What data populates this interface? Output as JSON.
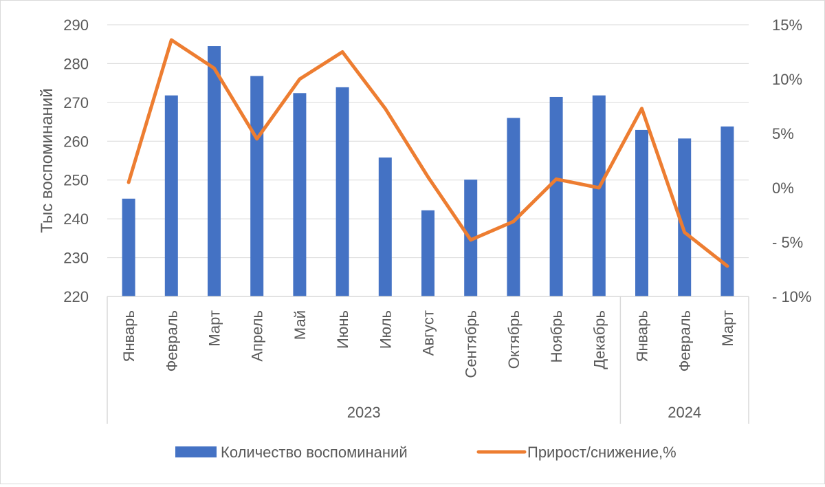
{
  "chart_data": {
    "type": "bar",
    "categories": [
      "Январь",
      "Февраль",
      "Март",
      "Апрель",
      "Май",
      "Июнь",
      "Июль",
      "Август",
      "Сентябрь",
      "Октябрь",
      "Ноябрь",
      "Декабрь",
      "Январь",
      "Февраль",
      "Март"
    ],
    "groups": [
      {
        "label": "2023",
        "count": 12
      },
      {
        "label": "2024",
        "count": 3
      }
    ],
    "series": [
      {
        "name": "Количество воспоминаний",
        "type": "bar",
        "axis": "left",
        "color": "#4472C4",
        "values": [
          245.2,
          271.8,
          284.5,
          276.8,
          272.4,
          273.9,
          255.8,
          242.2,
          250.1,
          266.0,
          271.4,
          271.8,
          262.9,
          260.7,
          263.8
        ]
      },
      {
        "name": "Прирост/снижение,%",
        "type": "line",
        "axis": "right",
        "color": "#ED7D31",
        "values": [
          0.5,
          13.6,
          11.0,
          4.5,
          10.0,
          12.5,
          7.3,
          1.0,
          -4.8,
          -3.1,
          0.8,
          0.0,
          7.3,
          -4.1,
          -7.2
        ]
      }
    ],
    "ylabel": "Тыс воспоминаний",
    "ylim": [
      220,
      290
    ],
    "yticks": [
      220,
      230,
      240,
      250,
      260,
      270,
      280,
      290
    ],
    "y2lim": [
      -10,
      15
    ],
    "y2ticks": [
      -10,
      -5,
      0,
      5,
      10,
      15
    ],
    "y2tick_labels": [
      "- 10%",
      "- 5%",
      "0%",
      "5%",
      "10%",
      "15%"
    ],
    "grid": true,
    "legend_position": "bottom"
  }
}
